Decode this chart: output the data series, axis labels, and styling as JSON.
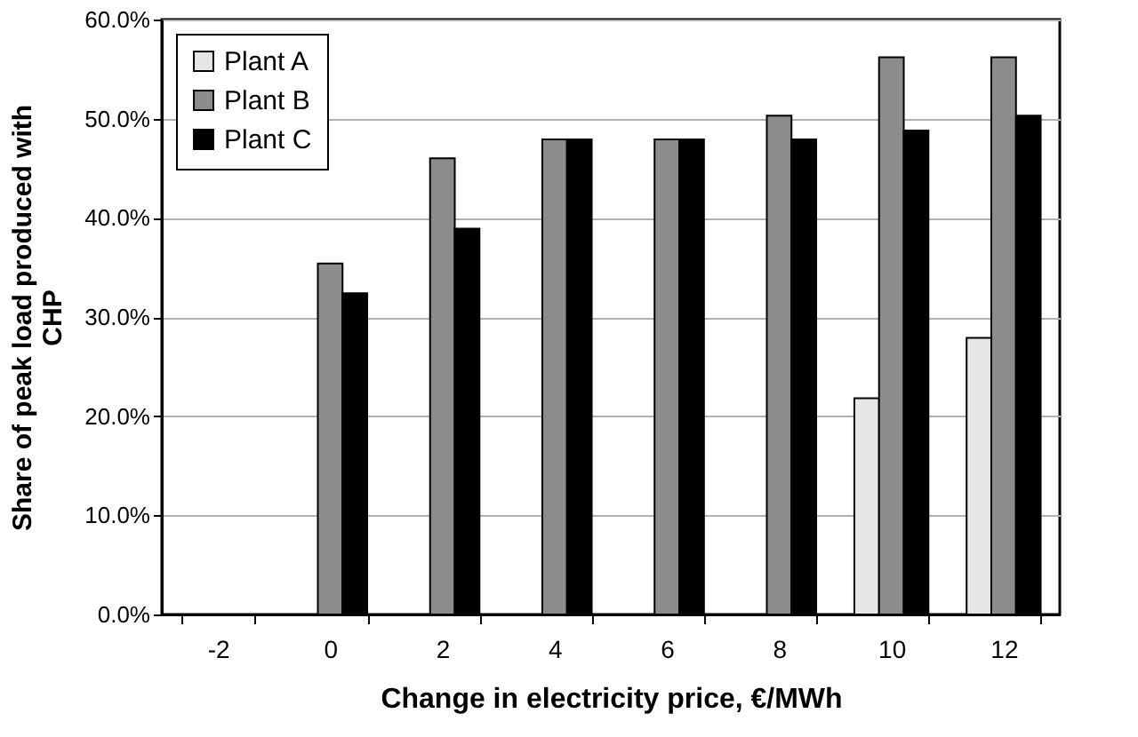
{
  "chart_data": {
    "type": "bar",
    "xlabel": "Change in electricity price,  €/MWh",
    "ylabel": "Share of peak load produced with CHP",
    "categories": [
      "-2",
      "0",
      "2",
      "4",
      "6",
      "8",
      "10",
      "12"
    ],
    "series": [
      {
        "name": "Plant A",
        "color": "#e6e6e6",
        "values": [
          null,
          null,
          null,
          null,
          null,
          null,
          21.8,
          27.9
        ]
      },
      {
        "name": "Plant B",
        "color": "#8c8c8c",
        "values": [
          null,
          35.4,
          46.0,
          47.9,
          47.9,
          50.3,
          56.2,
          56.2
        ]
      },
      {
        "name": "Plant C",
        "color": "#000000",
        "values": [
          null,
          32.4,
          38.9,
          47.9,
          47.9,
          47.9,
          48.8,
          50.3
        ]
      }
    ],
    "ylim": [
      0,
      60
    ],
    "yticks": [
      {
        "value": 0,
        "label": "0.0%"
      },
      {
        "value": 10,
        "label": "10.0%"
      },
      {
        "value": 20,
        "label": "20.0%"
      },
      {
        "value": 30,
        "label": "30.0%"
      },
      {
        "value": 40,
        "label": "40.0%"
      },
      {
        "value": 50,
        "label": "50.0%"
      },
      {
        "value": 60,
        "label": "60.0%"
      }
    ],
    "grid": "y",
    "legend": "top left"
  }
}
